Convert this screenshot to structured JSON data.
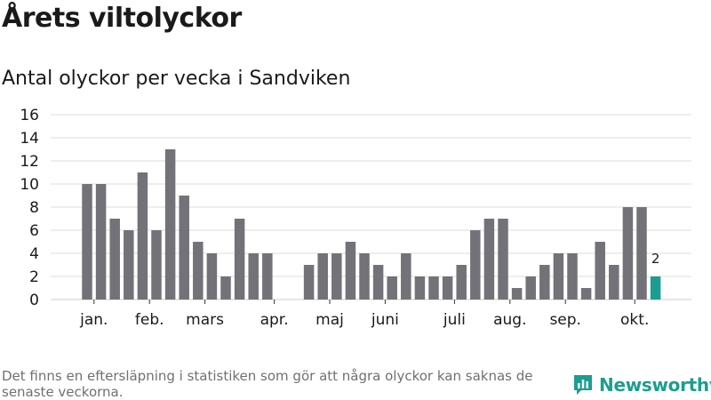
{
  "header": {
    "title": "Årets viltolyckor",
    "subtitle": "Antal olyckor per vecka i Sandviken"
  },
  "footer": {
    "note": "Det finns en eftersläpning i statistiken som gör att några olyckor kan saknas de senaste veckorna.",
    "brand": "Newsworthy"
  },
  "colors": {
    "bar": "#737278",
    "highlight": "#1b9e8f",
    "grid": "#dddddd",
    "text": "#1a1a1a"
  },
  "chart_data": {
    "type": "bar",
    "title": "Årets viltolyckor",
    "subtitle": "Antal olyckor per vecka i Sandviken",
    "xlabel": "",
    "ylabel": "",
    "ylim": [
      0,
      16
    ],
    "yticks": [
      0,
      2,
      4,
      6,
      8,
      10,
      12,
      14,
      16
    ],
    "grid": true,
    "weeks": [
      1,
      2,
      3,
      4,
      5,
      6,
      7,
      8,
      9,
      10,
      11,
      12,
      13,
      14,
      15,
      16,
      17,
      18,
      19,
      20,
      21,
      22,
      23,
      24,
      25,
      26,
      27,
      28,
      29,
      30,
      31,
      32,
      33,
      34,
      35,
      36,
      37,
      38,
      39,
      40,
      41,
      42,
      43
    ],
    "values": [
      10,
      10,
      7,
      6,
      11,
      6,
      13,
      9,
      5,
      4,
      2,
      7,
      4,
      4,
      0,
      0,
      3,
      4,
      4,
      5,
      4,
      3,
      2,
      4,
      2,
      2,
      2,
      3,
      6,
      7,
      7,
      1,
      2,
      3,
      4,
      4,
      1,
      5,
      3,
      8,
      8,
      2,
      null
    ],
    "highlight_index": 41,
    "highlight_label": "2",
    "month_labels": [
      {
        "label": "jan.",
        "week": 1.5
      },
      {
        "label": "feb.",
        "week": 5.5
      },
      {
        "label": "mars",
        "week": 9.5
      },
      {
        "label": "apr.",
        "week": 14.5
      },
      {
        "label": "maj",
        "week": 18.5
      },
      {
        "label": "juni",
        "week": 22.5
      },
      {
        "label": "juli",
        "week": 27.5
      },
      {
        "label": "aug.",
        "week": 31.5
      },
      {
        "label": "sep.",
        "week": 35.5
      },
      {
        "label": "okt.",
        "week": 40.5
      }
    ]
  }
}
